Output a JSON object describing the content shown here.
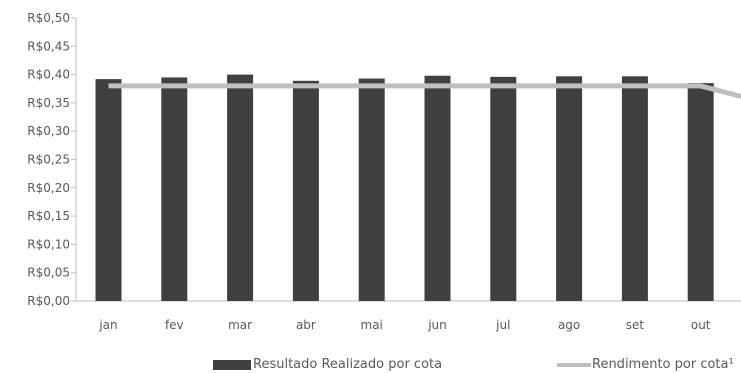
{
  "chart_data": {
    "type": "bar",
    "categories": [
      "jan",
      "fev",
      "mar",
      "abr",
      "mai",
      "jun",
      "jul",
      "ago",
      "set",
      "out"
    ],
    "ylim": [
      0,
      0.5
    ],
    "y_ticks": [
      0.0,
      0.05,
      0.1,
      0.15,
      0.2,
      0.25,
      0.3,
      0.35,
      0.4,
      0.45,
      0.5
    ],
    "y_tick_labels": [
      "R$0,00",
      "R$0,05",
      "R$0,10",
      "R$0,15",
      "R$0,20",
      "R$0,25",
      "R$0,30",
      "R$0,35",
      "R$0,40",
      "R$0,45",
      "R$0,50"
    ],
    "grid": false,
    "legend_position": "bottom",
    "series": [
      {
        "name": "Resultado Realizado por cota",
        "kind": "bar",
        "color": "#404040",
        "values": [
          0.392,
          0.395,
          0.4,
          0.389,
          0.393,
          0.398,
          0.396,
          0.397,
          0.397,
          0.385
        ]
      },
      {
        "name": "Rendimento por cota",
        "kind": "line",
        "color": "#bfbfbf",
        "values": [
          0.38,
          0.38,
          0.38,
          0.38,
          0.38,
          0.38,
          0.38,
          0.38,
          0.38,
          0.38
        ],
        "continues_past_last_category_value": 0.35
      }
    ]
  },
  "legend": {
    "bar_label": "Resultado Realizado por cota",
    "line_label": "Rendimento por cota¹"
  }
}
